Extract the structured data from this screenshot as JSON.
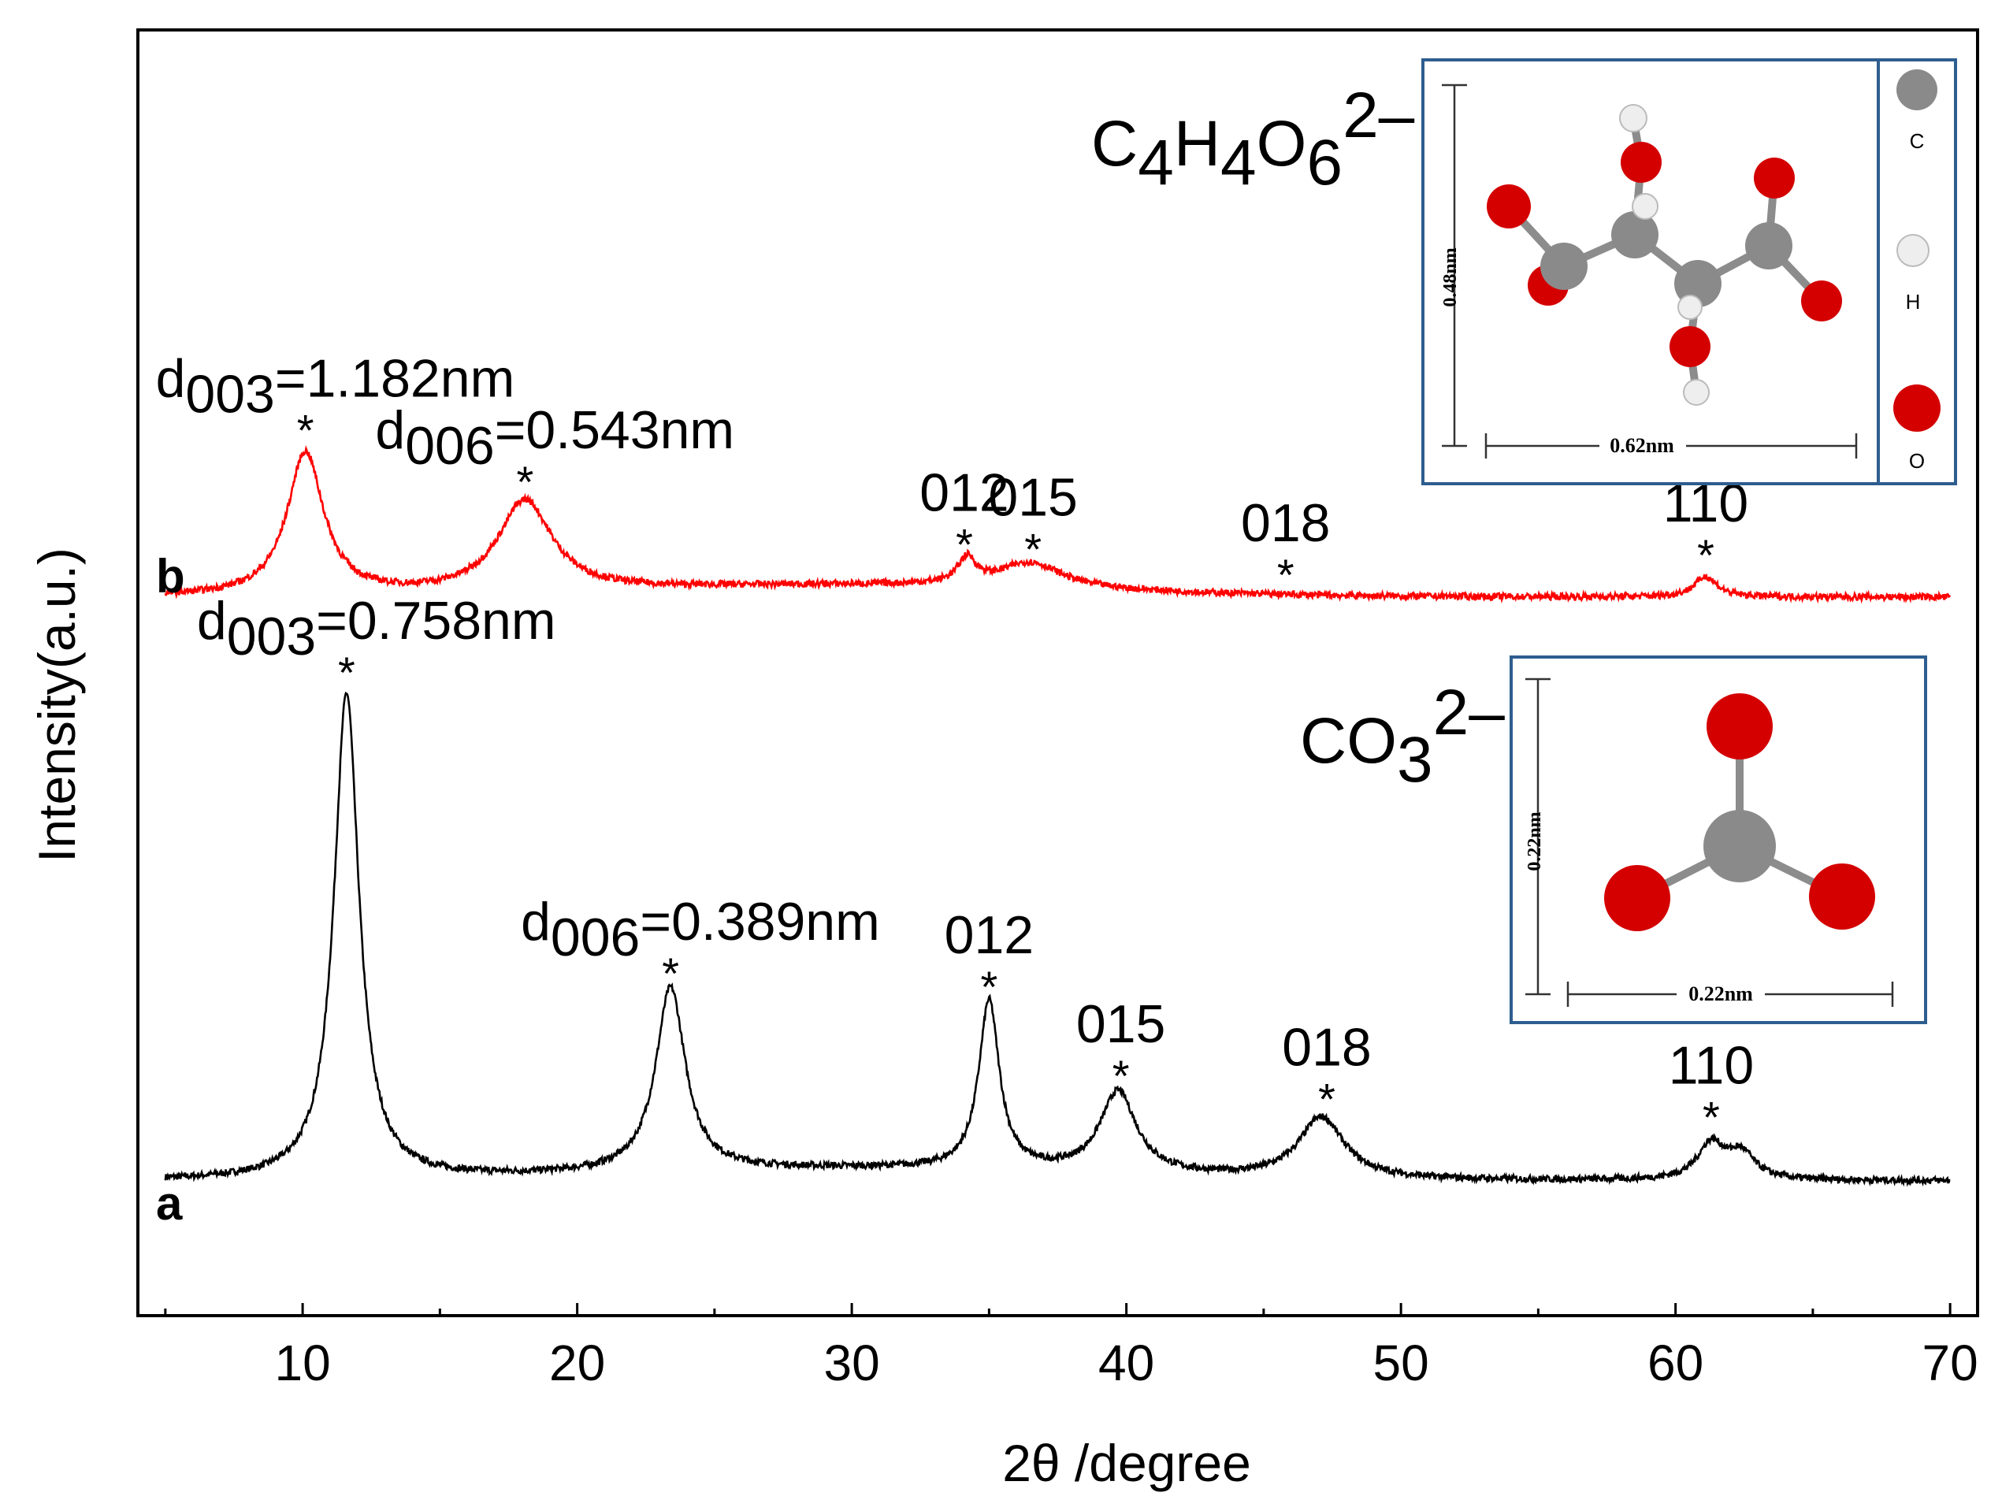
{
  "chart_data": {
    "type": "line",
    "xlabel": "2θ /degree",
    "ylabel": "Intensity(a.u.)",
    "xlim": [
      4,
      71
    ],
    "xticks": [
      10,
      20,
      30,
      40,
      50,
      60,
      70
    ],
    "grid": false,
    "series": [
      {
        "name": "a",
        "color": "#000000",
        "baseline": 14,
        "peaks": [
          {
            "x": 11.6,
            "height": 95,
            "width": 0.55
          },
          {
            "x": 23.4,
            "height": 36,
            "width": 0.65
          },
          {
            "x": 35.0,
            "height": 33,
            "width": 0.45
          },
          {
            "x": 39.7,
            "height": 16,
            "width": 0.8
          },
          {
            "x": 47.1,
            "height": 12,
            "width": 1.0
          },
          {
            "x": 61.3,
            "height": 7,
            "width": 0.6
          },
          {
            "x": 62.4,
            "height": 5,
            "width": 0.6
          }
        ],
        "annotations": [
          {
            "x": 11.6,
            "marker": "*",
            "label_main": "d",
            "label_sub": "003",
            "label_rest": "=0.758nm"
          },
          {
            "x": 23.4,
            "marker": "*",
            "label_main": "d",
            "label_sub": "006",
            "label_rest": "=0.389nm"
          },
          {
            "x": 35.0,
            "marker": "*",
            "label_main": "012"
          },
          {
            "x": 39.8,
            "marker": "*",
            "label_main": "015"
          },
          {
            "x": 47.3,
            "marker": "*",
            "label_main": "018"
          },
          {
            "x": 61.3,
            "marker": "*",
            "label_main": "110"
          }
        ]
      },
      {
        "name": "b",
        "color": "#ff0000",
        "baseline": 128,
        "peaks": [
          {
            "x": 10.1,
            "height": 28,
            "width": 0.8
          },
          {
            "x": 18.1,
            "height": 18,
            "width": 1.2
          },
          {
            "x": 34.2,
            "height": 5,
            "width": 0.4
          },
          {
            "x": 36.5,
            "height": 5,
            "width": 1.4
          },
          {
            "x": 61.1,
            "height": 4,
            "width": 0.5
          }
        ],
        "annotations": [
          {
            "x": 10.1,
            "marker": "*",
            "label_main": "d",
            "label_sub": "003",
            "label_rest": "=1.182nm"
          },
          {
            "x": 18.1,
            "marker": "*",
            "label_main": "d",
            "label_sub": "006",
            "label_rest": "=0.543nm"
          },
          {
            "x": 34.1,
            "marker": "*",
            "label_main": "012"
          },
          {
            "x": 36.6,
            "marker": "*",
            "label_main": "015"
          },
          {
            "x": 45.8,
            "marker": "*",
            "label_main": "018"
          },
          {
            "x": 61.1,
            "marker": "*",
            "label_main": "110"
          }
        ]
      }
    ],
    "insets": [
      {
        "name": "tartrate",
        "formula_main": "C",
        "formula_parts": [
          [
            "C",
            ""
          ],
          [
            "4",
            "sub"
          ],
          [
            "H",
            ""
          ],
          [
            "4",
            "sub"
          ],
          [
            "O",
            ""
          ],
          [
            "6",
            "sub"
          ],
          [
            "2–",
            "sup"
          ]
        ],
        "dim_vertical": "0.48nm",
        "dim_horizontal": "0.62nm",
        "legend": [
          {
            "element": "C",
            "color": "#8a8a8a"
          },
          {
            "element": "H",
            "color": "#eeeeee"
          },
          {
            "element": "O",
            "color": "#dd0000"
          }
        ]
      },
      {
        "name": "carbonate",
        "formula_parts": [
          [
            "CO",
            ""
          ],
          [
            "3",
            "sub"
          ],
          [
            "2–",
            "sup"
          ]
        ],
        "dim_vertical": "0.22nm",
        "dim_horizontal": "0.22nm"
      }
    ]
  }
}
